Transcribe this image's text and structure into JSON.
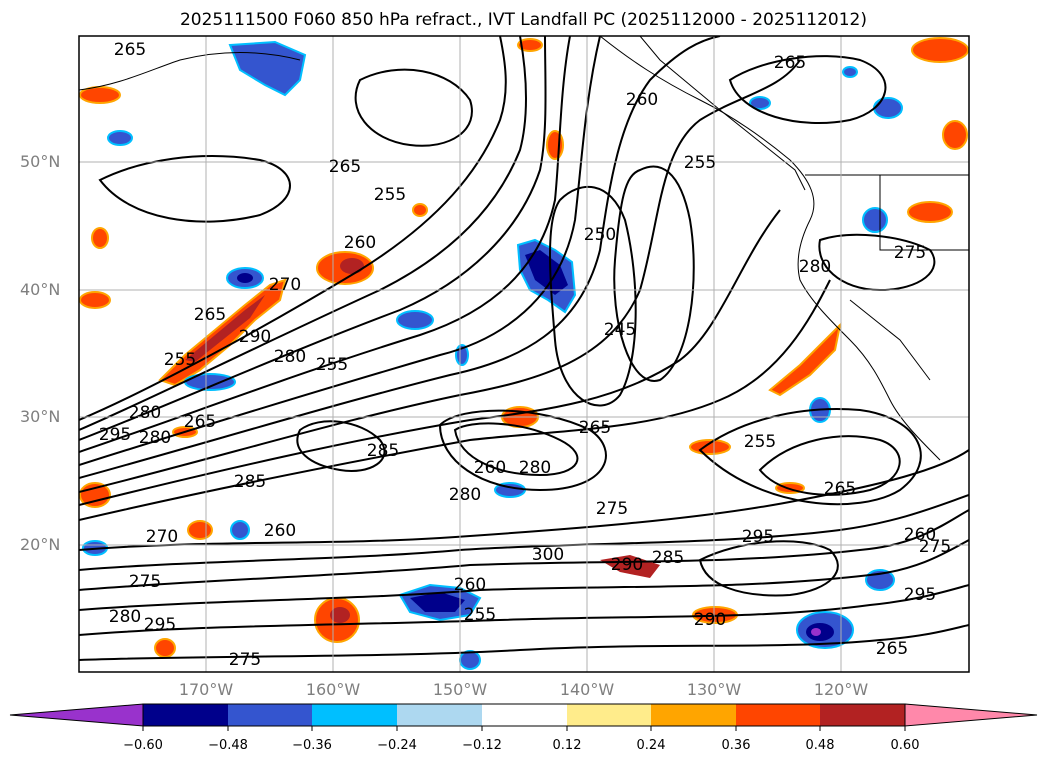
{
  "title": "2025111500 F060 850 hPa refract., IVT Landfall PC (2025112000 - 2025112012)",
  "latitude_labels": [
    "50°N",
    "40°N",
    "30°N",
    "20°N"
  ],
  "longitude_labels": [
    "170°W",
    "160°W",
    "150°W",
    "140°W",
    "130°W",
    "120°W"
  ],
  "contour_labels": [
    "265",
    "265",
    "260",
    "255",
    "265",
    "255",
    "250",
    "260",
    "270",
    "265",
    "255",
    "290",
    "280",
    "255",
    "245",
    "280",
    "295",
    "280",
    "265",
    "265",
    "260",
    "280",
    "285",
    "285",
    "280",
    "275",
    "260",
    "255",
    "265",
    "270",
    "275",
    "280",
    "295",
    "295",
    "285",
    "300",
    "290",
    "260",
    "255",
    "260",
    "275",
    "295",
    "290",
    "275",
    "265",
    "275",
    "280"
  ],
  "colorbar": {
    "tick_labels": [
      "−0.60",
      "−0.48",
      "−0.36",
      "−0.24",
      "−0.12",
      "0.12",
      "0.24",
      "0.36",
      "0.48",
      "0.60"
    ],
    "colors": [
      "#9932cc",
      "#00008b",
      "#3455cf",
      "#00bfff",
      "#add8f0",
      "#ffffff",
      "#ffec8b",
      "#ffa500",
      "#ff4500",
      "#b22222",
      "#ff88aa"
    ]
  },
  "map": {
    "shading": "anomaly PC of IVT landfall",
    "contours": "850 hPa refractivity",
    "background": "#ffffff",
    "gridline_color": "#b0b0b0"
  }
}
